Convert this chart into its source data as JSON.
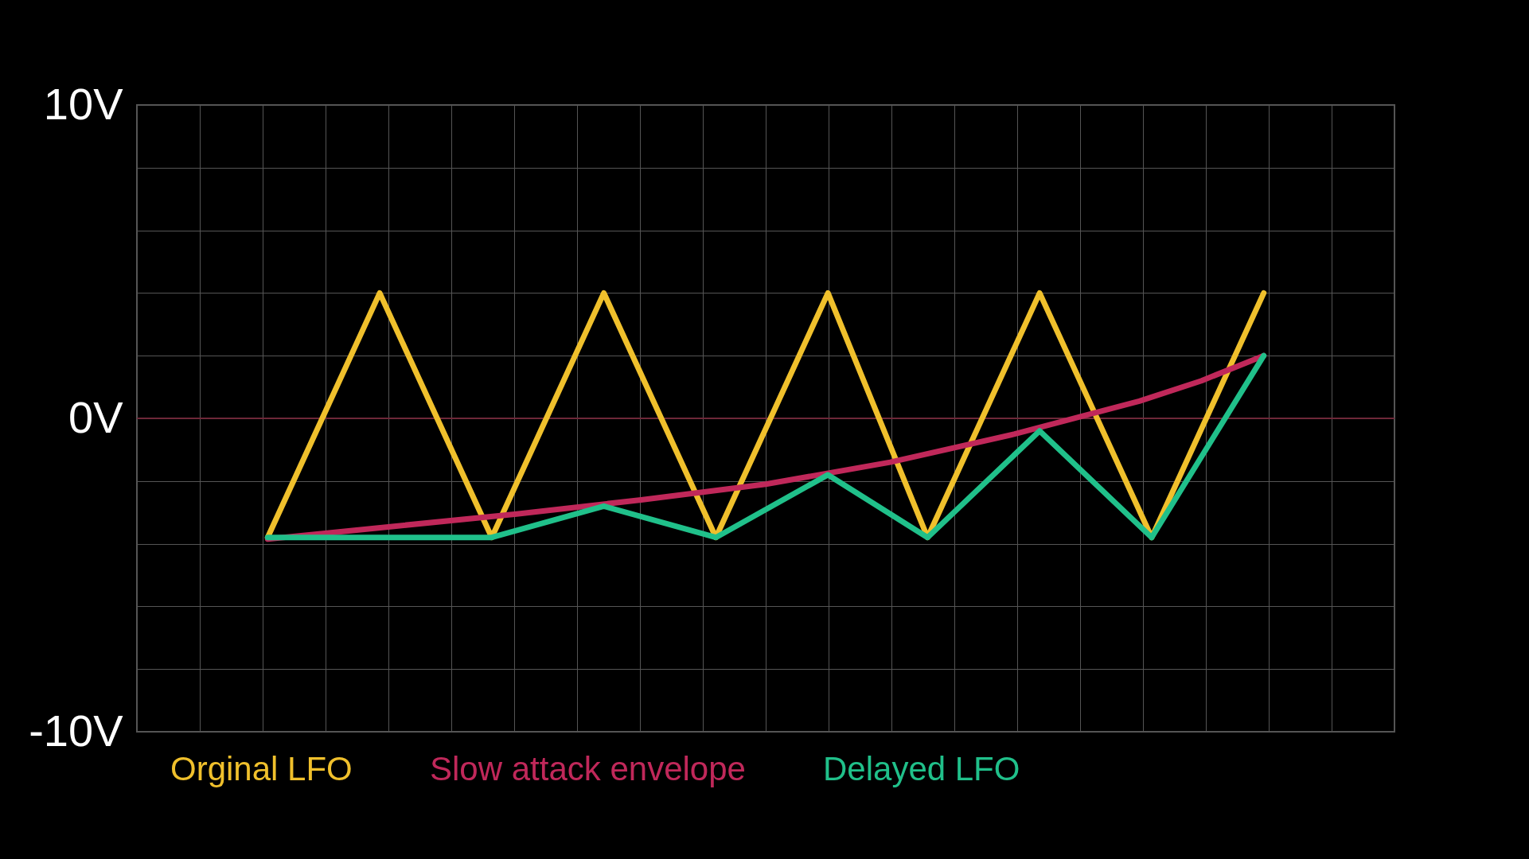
{
  "chart_data": {
    "type": "line",
    "categories": [
      null,
      null,
      null,
      null,
      null,
      null,
      null,
      null,
      null,
      null,
      null,
      null,
      null,
      null,
      null,
      null,
      null,
      null,
      null,
      null,
      null,
      null,
      null,
      null,
      null,
      null,
      null,
      null,
      null,
      null,
      null,
      null,
      null,
      null,
      null,
      null,
      null,
      null,
      null,
      null,
      null,
      null,
      null,
      null,
      null,
      null,
      null,
      null,
      null,
      null,
      null,
      null,
      null,
      null,
      null,
      null,
      null,
      null,
      null,
      null,
      null,
      null,
      null,
      null,
      null,
      null,
      null,
      null,
      null,
      null,
      null,
      null,
      null,
      null,
      null,
      null,
      null,
      null,
      null,
      null,
      null,
      null,
      null,
      null,
      null,
      null,
      null,
      null,
      null,
      null,
      null,
      null,
      null,
      null,
      null,
      null,
      null,
      null,
      null,
      null,
      null
    ],
    "ylim": [
      -10,
      10
    ],
    "yticks": [
      {
        "value": -10,
        "label": "-10V"
      },
      {
        "value": -8,
        "label": null
      },
      {
        "value": -6,
        "label": null
      },
      {
        "value": -4,
        "label": null
      },
      {
        "value": -2,
        "label": null
      },
      {
        "value": 0,
        "label": "0V"
      },
      {
        "value": 2,
        "label": null
      },
      {
        "value": 4,
        "label": null
      },
      {
        "value": 6,
        "label": null
      },
      {
        "value": 8,
        "label": null
      },
      {
        "value": 10,
        "label": "10V"
      }
    ],
    "tick_labels": "y",
    "grid": true,
    "line_style": "solid",
    "ref_lines": [
      {
        "axis": "y",
        "value": 0,
        "color": "#6e2838"
      }
    ],
    "series": [
      {
        "name": "Orginal LFO",
        "color": "#f0c02c",
        "values": [
          null,
          null,
          null,
          null,
          null,
          null,
          null,
          null,
          null,
          null,
          -3.8,
          null,
          null,
          null,
          null,
          null,
          null,
          null,
          null,
          4,
          null,
          null,
          null,
          null,
          null,
          null,
          null,
          null,
          -3.8,
          null,
          null,
          null,
          null,
          null,
          null,
          null,
          null,
          4,
          null,
          null,
          null,
          null,
          null,
          null,
          null,
          null,
          -3.8,
          null,
          null,
          null,
          null,
          null,
          null,
          null,
          null,
          4,
          null,
          null,
          null,
          null,
          null,
          null,
          null,
          -3.8,
          null,
          null,
          null,
          null,
          null,
          null,
          null,
          null,
          4,
          null,
          null,
          null,
          null,
          null,
          null,
          null,
          null,
          -3.8,
          null,
          null,
          null,
          null,
          null,
          null,
          null,
          null,
          4,
          null,
          null,
          null,
          null,
          null,
          null,
          null,
          null,
          null,
          null
        ]
      },
      {
        "name": "Slow attack envelope",
        "color": "#c0285a",
        "values": [
          null,
          null,
          null,
          null,
          null,
          null,
          null,
          null,
          null,
          null,
          -3.85,
          null,
          null,
          null,
          null,
          null,
          null,
          null,
          null,
          null,
          -3.45,
          null,
          null,
          null,
          null,
          null,
          null,
          null,
          null,
          null,
          -3.05,
          null,
          null,
          null,
          null,
          null,
          null,
          null,
          null,
          null,
          -2.6,
          null,
          null,
          null,
          null,
          null,
          null,
          null,
          null,
          null,
          -2.1,
          null,
          null,
          null,
          null,
          null,
          null,
          null,
          null,
          null,
          -1.4,
          null,
          null,
          null,
          null,
          null,
          null,
          null,
          null,
          null,
          -0.5,
          null,
          null,
          null,
          null,
          null,
          null,
          null,
          null,
          null,
          0.55,
          null,
          null,
          null,
          null,
          1.2,
          null,
          null,
          null,
          null,
          2,
          null,
          null,
          null,
          null,
          null,
          null,
          null,
          null,
          null,
          null
        ]
      },
      {
        "name": "Delayed LFO",
        "color": "#20c08a",
        "values": [
          null,
          null,
          null,
          null,
          null,
          null,
          null,
          null,
          null,
          null,
          -3.8,
          null,
          null,
          null,
          null,
          null,
          null,
          null,
          null,
          null,
          null,
          null,
          null,
          null,
          null,
          null,
          null,
          null,
          -3.8,
          null,
          null,
          null,
          null,
          null,
          null,
          null,
          null,
          -2.8,
          null,
          null,
          null,
          null,
          null,
          null,
          null,
          null,
          -3.8,
          null,
          null,
          null,
          null,
          null,
          null,
          null,
          null,
          -1.8,
          null,
          null,
          null,
          null,
          null,
          null,
          null,
          -3.8,
          null,
          null,
          null,
          null,
          null,
          null,
          null,
          null,
          -0.4,
          null,
          null,
          null,
          null,
          null,
          null,
          null,
          null,
          -3.8,
          null,
          null,
          null,
          null,
          null,
          null,
          null,
          null,
          2,
          null,
          null,
          null,
          null,
          null,
          null,
          null,
          null,
          null,
          null
        ]
      }
    ]
  }
}
